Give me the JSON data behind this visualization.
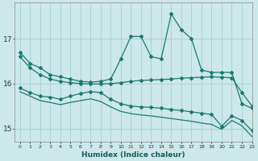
{
  "xlabel": "Humidex (Indice chaleur)",
  "bg_color": "#cce8e8",
  "line_color": "#1a7a6e",
  "grid_color": "#aacfcf",
  "xlim": [
    -0.5,
    23
  ],
  "ylim": [
    14.7,
    17.8
  ],
  "yticks": [
    15,
    16,
    17
  ],
  "xticks": [
    0,
    1,
    2,
    3,
    4,
    5,
    6,
    7,
    8,
    9,
    10,
    11,
    12,
    13,
    14,
    15,
    16,
    17,
    18,
    19,
    20,
    21,
    22,
    23
  ],
  "line1_x": [
    0,
    1,
    2,
    3,
    4,
    5,
    6,
    7,
    8,
    9,
    10,
    11,
    12,
    13,
    14,
    15,
    16,
    17,
    18,
    19,
    20,
    21,
    22,
    23
  ],
  "line1_y": [
    16.7,
    16.45,
    16.35,
    16.2,
    16.15,
    16.1,
    16.05,
    16.03,
    16.05,
    16.1,
    16.55,
    17.05,
    17.05,
    16.6,
    16.55,
    17.55,
    17.2,
    17.0,
    16.3,
    16.25,
    16.25,
    16.25,
    15.55,
    15.45
  ],
  "line2_x": [
    0,
    1,
    2,
    3,
    4,
    5,
    6,
    7,
    8,
    9,
    10,
    11,
    12,
    13,
    14,
    15,
    16,
    17,
    18,
    19,
    20,
    21,
    22,
    23
  ],
  "line2_y": [
    16.6,
    16.35,
    16.2,
    16.1,
    16.05,
    16.02,
    16.0,
    15.99,
    15.99,
    16.0,
    16.02,
    16.05,
    16.07,
    16.08,
    16.09,
    16.1,
    16.12,
    16.13,
    16.14,
    16.15,
    16.14,
    16.13,
    15.8,
    15.5
  ],
  "line3_x": [
    0,
    1,
    2,
    3,
    4,
    5,
    6,
    7,
    8,
    9,
    10,
    11,
    12,
    13,
    14,
    15,
    16,
    17,
    18,
    19,
    20,
    21,
    22,
    23
  ],
  "line3_y": [
    15.9,
    15.8,
    15.72,
    15.7,
    15.65,
    15.72,
    15.78,
    15.82,
    15.8,
    15.65,
    15.55,
    15.5,
    15.48,
    15.47,
    15.45,
    15.42,
    15.4,
    15.37,
    15.34,
    15.31,
    15.05,
    15.28,
    15.18,
    14.95
  ],
  "line4_x": [
    0,
    1,
    2,
    3,
    4,
    5,
    6,
    7,
    8,
    9,
    10,
    11,
    12,
    13,
    14,
    15,
    16,
    17,
    18,
    19,
    20,
    21,
    22,
    23
  ],
  "line4_y": [
    15.82,
    15.72,
    15.62,
    15.58,
    15.53,
    15.58,
    15.62,
    15.66,
    15.6,
    15.48,
    15.38,
    15.33,
    15.3,
    15.28,
    15.25,
    15.22,
    15.19,
    15.16,
    15.12,
    15.09,
    14.98,
    15.18,
    15.06,
    14.82
  ]
}
